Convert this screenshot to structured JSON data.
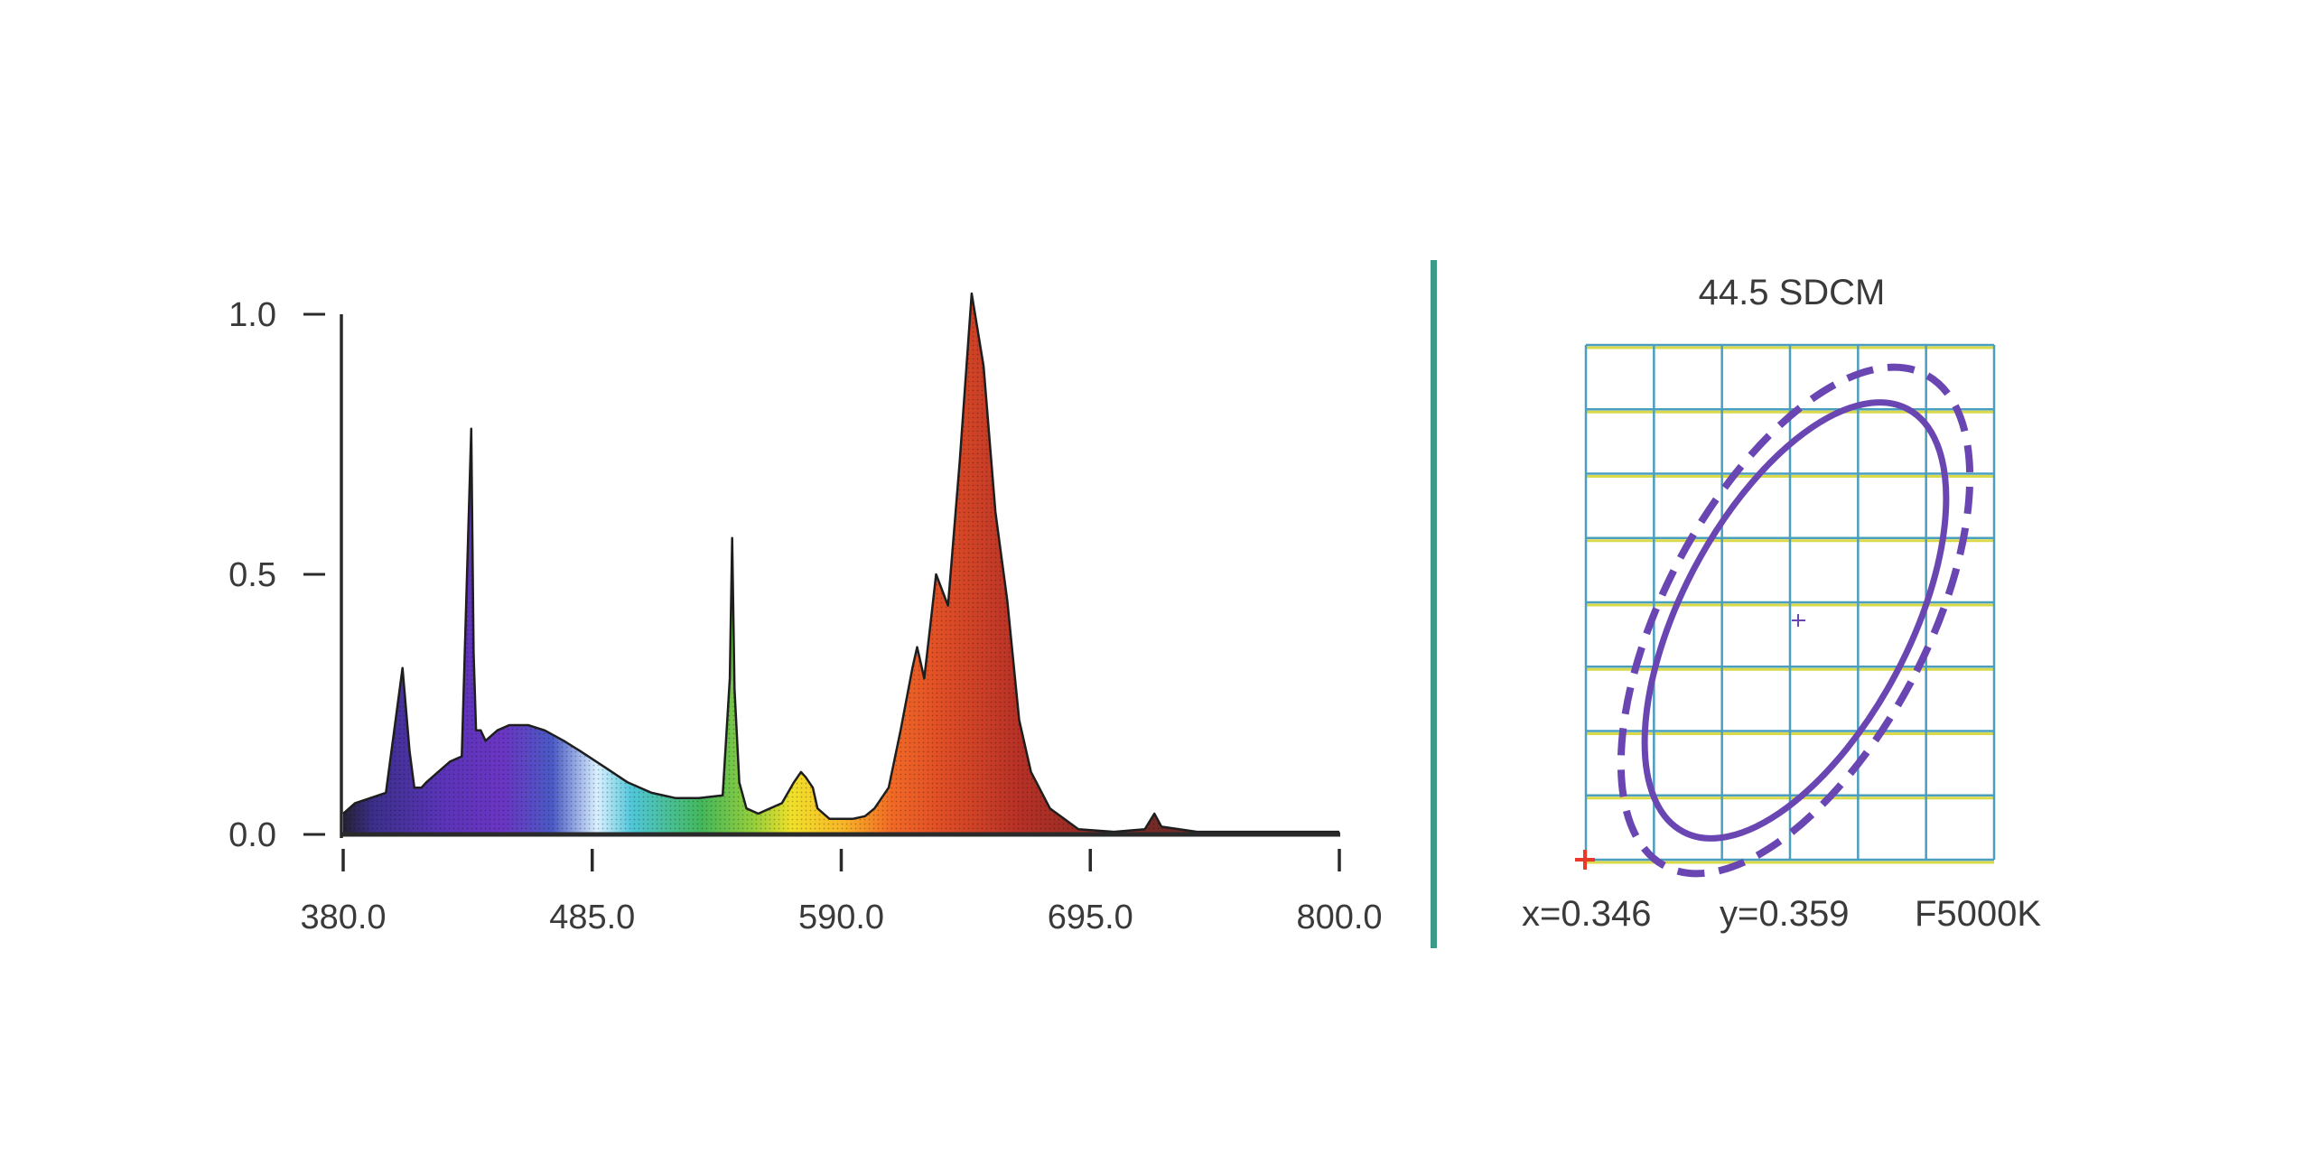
{
  "chart_data": [
    {
      "type": "area",
      "title": "",
      "xlabel": "",
      "ylabel": "",
      "xlim": [
        380.0,
        800.0
      ],
      "ylim": [
        0.0,
        1.05
      ],
      "x_ticks": [
        "380.0",
        "485.0",
        "590.0",
        "695.0",
        "800.0"
      ],
      "x_tick_values": [
        380,
        485,
        590,
        695,
        800
      ],
      "y_ticks": [
        "0.0",
        "0.5",
        "1.0"
      ],
      "y_tick_values": [
        0.0,
        0.5,
        1.0
      ],
      "grid": false,
      "fill": "visible-spectrum gradient",
      "series": [
        {
          "x": [
            380,
            385,
            398,
            405,
            408,
            410,
            413,
            415,
            420,
            425,
            430,
            434,
            435,
            436,
            438,
            440,
            445,
            450,
            458,
            465,
            473,
            480,
            490,
            500,
            510,
            520,
            530,
            540,
            543,
            544,
            545,
            547,
            550,
            555,
            560,
            565,
            570,
            573,
            575,
            578,
            580,
            585,
            590,
            595,
            600,
            604,
            610,
            615,
            620,
            622,
            625,
            628,
            630,
            635,
            640,
            645,
            650,
            655,
            660,
            665,
            670,
            678,
            690,
            705,
            718,
            722,
            725,
            740,
            760,
            780,
            800
          ],
          "y": [
            0.04,
            0.06,
            0.08,
            0.32,
            0.16,
            0.09,
            0.09,
            0.1,
            0.12,
            0.14,
            0.15,
            0.78,
            0.35,
            0.2,
            0.2,
            0.18,
            0.2,
            0.21,
            0.21,
            0.2,
            0.18,
            0.16,
            0.13,
            0.1,
            0.08,
            0.07,
            0.07,
            0.075,
            0.3,
            0.57,
            0.28,
            0.1,
            0.05,
            0.04,
            0.05,
            0.06,
            0.1,
            0.12,
            0.11,
            0.09,
            0.05,
            0.03,
            0.03,
            0.03,
            0.035,
            0.05,
            0.09,
            0.2,
            0.32,
            0.36,
            0.3,
            0.42,
            0.5,
            0.44,
            0.72,
            1.04,
            0.9,
            0.62,
            0.45,
            0.22,
            0.12,
            0.05,
            0.01,
            0.005,
            0.01,
            0.04,
            0.015,
            0.005,
            0.005,
            0.005,
            0.005
          ]
        }
      ]
    },
    {
      "type": "scatter",
      "title": "44.5 SDCM",
      "grid": true,
      "grid_cols": 6,
      "grid_rows": 8,
      "ellipses": [
        "solid",
        "dashed"
      ],
      "ellipse_color": "#6a46b3",
      "center_marker": "+",
      "x_value": "x=0.346",
      "y_value": "y=0.359",
      "label": "F5000K"
    }
  ],
  "colors": {
    "axis": "#2a2a2a",
    "grid_blue": "#4a9fbf",
    "grid_yellow": "#d9d94a",
    "divider": "#3c9a88",
    "ellipse": "#6a46b3",
    "origin_marker": "#e83a2a"
  }
}
